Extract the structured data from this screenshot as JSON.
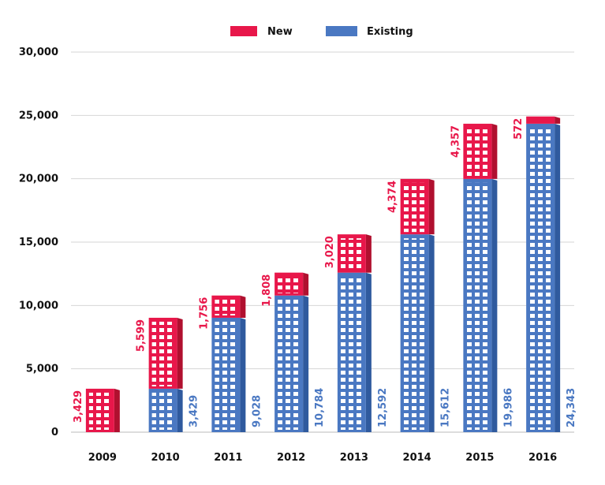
{
  "chart_data": {
    "type": "bar",
    "stacked": true,
    "categories": [
      "2009",
      "2010",
      "2011",
      "2012",
      "2013",
      "2014",
      "2015",
      "2016"
    ],
    "series": [
      {
        "name": "Existing",
        "color": "#4a78c2",
        "values": [
          0,
          3429,
          9028,
          10784,
          12592,
          15612,
          19986,
          24343
        ]
      },
      {
        "name": "New",
        "color": "#e8174a",
        "values": [
          3429,
          5599,
          1756,
          1808,
          3020,
          4374,
          4357,
          572
        ]
      }
    ],
    "existing_labels": [
      "",
      "3,429",
      "9,028",
      "10,784",
      "12,592",
      "15,612",
      "19,986",
      "24,343"
    ],
    "new_labels": [
      "3,429",
      "5,599",
      "1,756",
      "1,808",
      "3,020",
      "4,374",
      "4,357",
      "572"
    ],
    "title": "",
    "xlabel": "",
    "ylabel": "",
    "ylim": [
      0,
      30000
    ],
    "yticks": [
      0,
      5000,
      10000,
      15000,
      20000,
      25000,
      30000
    ],
    "ytick_labels": [
      "0",
      "5,000",
      "10,000",
      "15,000",
      "20,000",
      "25,000",
      "30,000"
    ],
    "grid": true,
    "legend": {
      "position": "top-center",
      "entries": [
        "New",
        "Existing"
      ]
    },
    "bar_style": "building"
  }
}
